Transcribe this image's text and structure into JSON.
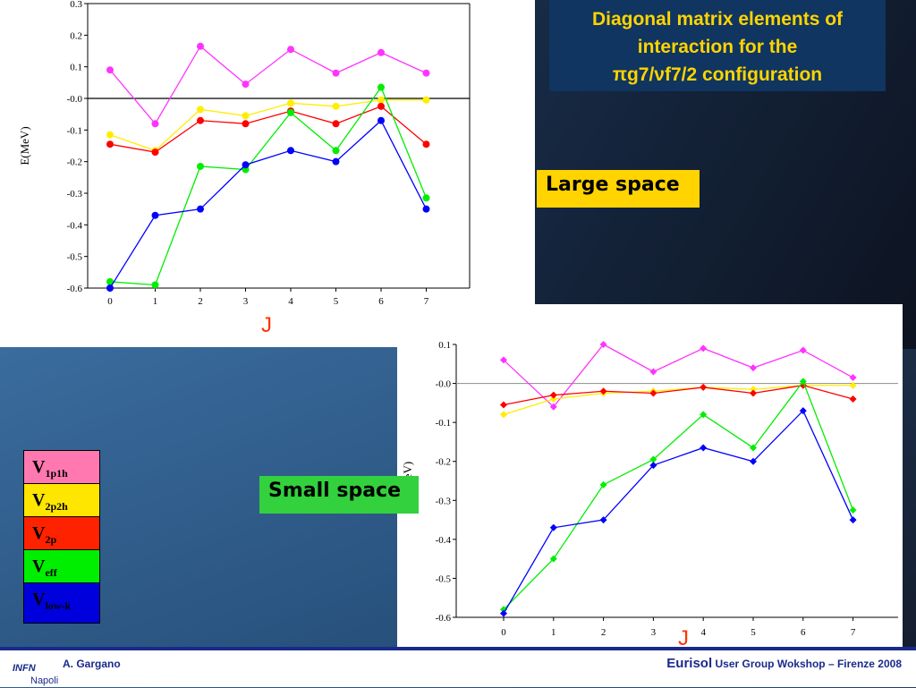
{
  "title": "Diagonal matrix elements of interaction for the πg7/νf7/2 configuration",
  "title_lines": [
    "Diagonal matrix elements of",
    "interaction for the",
    "πg7/νf7/2 configuration"
  ],
  "large_space_label": "Large space",
  "small_space_label": "Small space",
  "legend": [
    {
      "base": "V",
      "sub": "1p1h",
      "color": "#ff79b0"
    },
    {
      "base": "V",
      "sub": "2p2h",
      "color": "#ffe600"
    },
    {
      "base": "V",
      "sub": "2p",
      "color": "#ff2200"
    },
    {
      "base": "V",
      "sub": "eff",
      "color": "#00ee00"
    },
    {
      "base": "V",
      "sub": "low-k",
      "color": "#0000dd"
    }
  ],
  "footer": {
    "author": "A. Gargano",
    "event_name": "Eurisol",
    "event_rest": "User Group Wokshop – Firenze  2008",
    "logo_text": "INFN",
    "logo_city": "Napoli"
  },
  "chart_data": [
    {
      "type": "line",
      "xlabel": "J",
      "ylabel": "E(MeV)",
      "ylim": [
        -0.6,
        0.3
      ],
      "yticks": [
        "0.3",
        "0.2",
        "0.1",
        "-0.0",
        "-0.1",
        "-0.2",
        "-0.3",
        "-0.4",
        "-0.5",
        "-0.6"
      ],
      "categories": [
        "0",
        "1",
        "2",
        "3",
        "4",
        "5",
        "6",
        "7"
      ],
      "series": [
        {
          "name": "V1p1h",
          "color": "#ff33ff",
          "values": [
            0.09,
            -0.08,
            0.165,
            0.045,
            0.155,
            0.08,
            0.145,
            0.08
          ]
        },
        {
          "name": "V2p2h",
          "color": "#ffee00",
          "values": [
            -0.115,
            -0.165,
            -0.035,
            -0.055,
            -0.015,
            -0.025,
            -0.005,
            -0.005
          ]
        },
        {
          "name": "V2p",
          "color": "#ff0000",
          "values": [
            -0.145,
            -0.17,
            -0.07,
            -0.08,
            -0.04,
            -0.08,
            -0.025,
            -0.145
          ]
        },
        {
          "name": "Veff",
          "color": "#00ee00",
          "values": [
            -0.58,
            -0.59,
            -0.215,
            -0.225,
            -0.045,
            -0.165,
            0.035,
            -0.315
          ]
        },
        {
          "name": "Vlow-k",
          "color": "#0000ff",
          "values": [
            -0.6,
            -0.37,
            -0.35,
            -0.21,
            -0.165,
            -0.2,
            -0.07,
            -0.35
          ]
        }
      ]
    },
    {
      "type": "line",
      "xlabel": "J",
      "ylabel": "E(MeV)",
      "ylim": [
        -0.6,
        0.1
      ],
      "yticks": [
        "0.1",
        "-0.0",
        "-0.1",
        "-0.2",
        "-0.3",
        "-0.4",
        "-0.5",
        "-0.6"
      ],
      "categories": [
        "0",
        "1",
        "2",
        "3",
        "4",
        "5",
        "6",
        "7"
      ],
      "series": [
        {
          "name": "V1p1h",
          "color": "#ff33ff",
          "values": [
            0.06,
            -0.06,
            0.1,
            0.03,
            0.09,
            0.04,
            0.085,
            0.015
          ]
        },
        {
          "name": "V2p2h",
          "color": "#ffee00",
          "values": [
            -0.08,
            -0.04,
            -0.025,
            -0.02,
            -0.01,
            -0.015,
            -0.005,
            -0.005
          ]
        },
        {
          "name": "V2p",
          "color": "#ff0000",
          "values": [
            -0.055,
            -0.03,
            -0.02,
            -0.025,
            -0.01,
            -0.025,
            -0.005,
            -0.04
          ]
        },
        {
          "name": "Veff",
          "color": "#00ee00",
          "values": [
            -0.58,
            -0.45,
            -0.26,
            -0.195,
            -0.08,
            -0.165,
            0.005,
            -0.325
          ]
        },
        {
          "name": "Vlow-k",
          "color": "#0000ff",
          "values": [
            -0.59,
            -0.37,
            -0.35,
            -0.21,
            -0.165,
            -0.2,
            -0.07,
            -0.35
          ]
        }
      ]
    }
  ]
}
